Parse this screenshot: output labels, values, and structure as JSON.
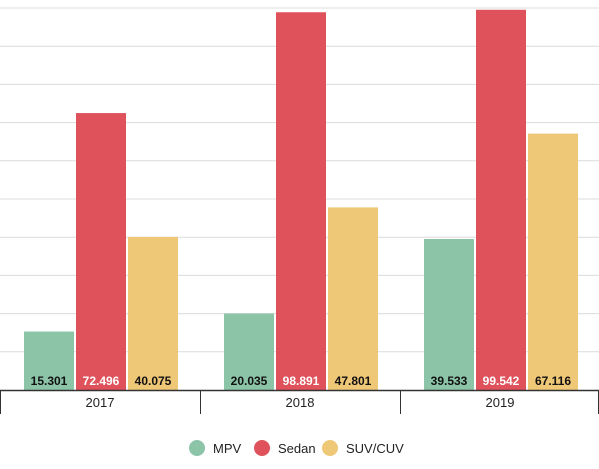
{
  "chart_data": {
    "type": "bar",
    "categories": [
      "2017",
      "2018",
      "2019"
    ],
    "series": [
      {
        "name": "MPV",
        "values": [
          15.301,
          20.035,
          39.533
        ],
        "value_labels": [
          "15.301",
          "20.035",
          "39.533"
        ],
        "color": "#8cc4a8",
        "label_color": "#111111"
      },
      {
        "name": "Sedan",
        "values": [
          72.496,
          98.891,
          99.542
        ],
        "value_labels": [
          "72.496",
          "98.891",
          "99.542"
        ],
        "color": "#e0525b",
        "label_color": "#ffffff"
      },
      {
        "name": "SUV/CUV",
        "values": [
          40.075,
          47.801,
          67.116
        ],
        "value_labels": [
          "40.075",
          "47.801",
          "67.116"
        ],
        "color": "#efc877",
        "label_color": "#111111"
      }
    ],
    "ylim": [
      0,
      100
    ],
    "grid": true,
    "legend_position": "bottom-center",
    "title": "",
    "xlabel": "",
    "ylabel": "",
    "colors": {
      "grid": "#dcdcdc",
      "axis": "#333333"
    }
  }
}
